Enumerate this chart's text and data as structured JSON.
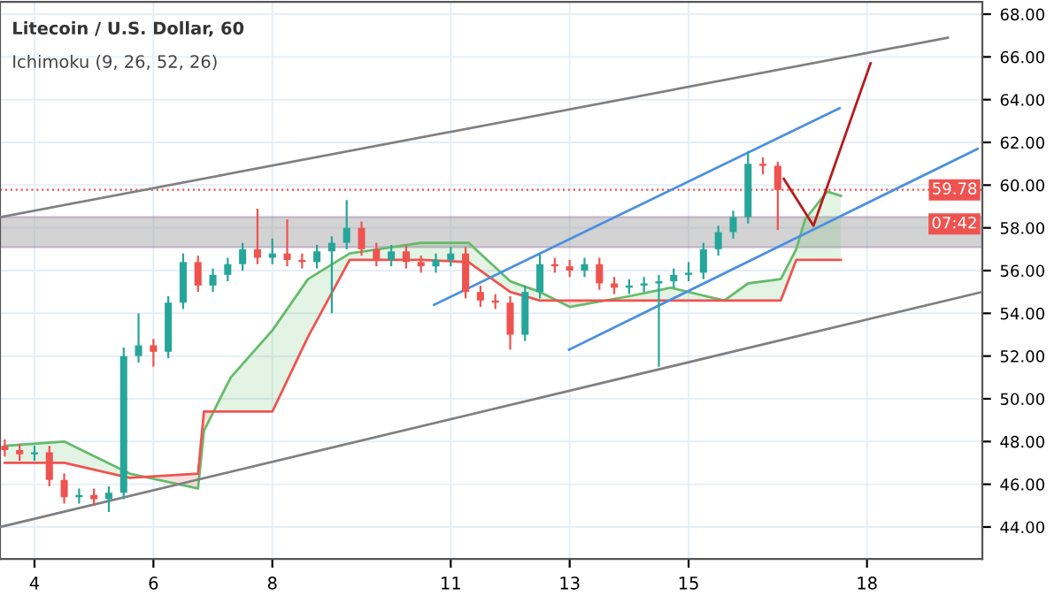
{
  "chart_data": {
    "type": "candlestick",
    "title": "Litecoin / U.S. Dollar, 60",
    "subtitle": "Ichimoku (9, 26, 52, 26)",
    "x": [
      3.5,
      3.75,
      4.0,
      4.25,
      4.5,
      4.75,
      5.0,
      5.25,
      5.5,
      5.75,
      6.0,
      6.25,
      6.5,
      6.75,
      7.0,
      7.25,
      7.5,
      7.75,
      8.0,
      8.25,
      8.5,
      8.75,
      9.0,
      9.25,
      9.5,
      9.75,
      10.0,
      10.25,
      10.5,
      10.75,
      11.0,
      11.25,
      11.5,
      11.75,
      12.0,
      12.25,
      12.5,
      12.75,
      13.0,
      13.25,
      13.5,
      13.75,
      14.0,
      14.25,
      14.5,
      14.75,
      15.0,
      15.25,
      15.5,
      15.75,
      16.0,
      16.25,
      16.5
    ],
    "ohlc": [
      [
        47.8,
        48.1,
        47.3,
        47.6
      ],
      [
        47.6,
        47.9,
        47.1,
        47.4
      ],
      [
        47.4,
        47.8,
        47.1,
        47.5
      ],
      [
        47.5,
        47.8,
        45.9,
        46.2
      ],
      [
        46.2,
        46.5,
        45.1,
        45.4
      ],
      [
        45.4,
        45.8,
        45.1,
        45.5
      ],
      [
        45.5,
        45.8,
        45.0,
        45.3
      ],
      [
        45.3,
        45.9,
        44.7,
        45.6
      ],
      [
        45.6,
        52.4,
        45.3,
        52.0
      ],
      [
        52.0,
        54.0,
        51.7,
        52.5
      ],
      [
        52.5,
        52.8,
        51.5,
        52.2
      ],
      [
        52.2,
        54.8,
        51.9,
        54.5
      ],
      [
        54.5,
        56.8,
        54.2,
        56.4
      ],
      [
        56.4,
        56.7,
        55.0,
        55.3
      ],
      [
        55.3,
        56.1,
        55.0,
        55.8
      ],
      [
        55.8,
        56.6,
        55.5,
        56.3
      ],
      [
        56.3,
        57.3,
        56.0,
        57.0
      ],
      [
        57.0,
        58.9,
        56.3,
        56.6
      ],
      [
        56.6,
        57.5,
        56.3,
        56.8
      ],
      [
        56.8,
        58.4,
        56.2,
        56.5
      ],
      [
        56.5,
        56.8,
        56.1,
        56.4
      ],
      [
        56.4,
        57.2,
        56.1,
        56.9
      ],
      [
        56.9,
        57.6,
        54.0,
        57.3
      ],
      [
        57.3,
        59.3,
        57.0,
        58.0
      ],
      [
        58.0,
        58.3,
        56.7,
        57.0
      ],
      [
        57.0,
        57.3,
        56.2,
        56.5
      ],
      [
        56.5,
        57.2,
        56.2,
        56.9
      ],
      [
        56.9,
        57.2,
        56.1,
        56.4
      ],
      [
        56.4,
        56.7,
        55.9,
        56.2
      ],
      [
        56.2,
        56.8,
        55.9,
        56.5
      ],
      [
        56.5,
        57.1,
        56.2,
        56.8
      ],
      [
        56.8,
        57.1,
        54.7,
        55.0
      ],
      [
        55.0,
        55.3,
        54.3,
        54.6
      ],
      [
        54.6,
        54.9,
        54.2,
        54.5
      ],
      [
        54.5,
        54.8,
        52.3,
        53.0
      ],
      [
        53.0,
        55.3,
        52.7,
        55.0
      ],
      [
        55.0,
        56.8,
        54.7,
        56.3
      ],
      [
        56.3,
        56.6,
        55.9,
        56.2
      ],
      [
        56.2,
        56.5,
        55.7,
        56.0
      ],
      [
        56.0,
        56.6,
        55.7,
        56.3
      ],
      [
        56.3,
        56.6,
        55.1,
        55.4
      ],
      [
        55.4,
        55.7,
        54.9,
        55.2
      ],
      [
        55.2,
        55.6,
        54.9,
        55.3
      ],
      [
        55.3,
        55.7,
        55.0,
        55.4
      ],
      [
        55.4,
        55.8,
        51.5,
        55.5
      ],
      [
        55.5,
        56.1,
        55.2,
        55.8
      ],
      [
        55.8,
        56.4,
        55.5,
        55.9
      ],
      [
        55.9,
        57.3,
        55.6,
        57.0
      ],
      [
        57.0,
        58.1,
        56.7,
        57.8
      ],
      [
        57.8,
        58.8,
        57.5,
        58.5
      ],
      [
        58.5,
        61.6,
        58.2,
        61.0
      ],
      [
        61.0,
        61.3,
        60.5,
        60.9
      ],
      [
        60.9,
        61.1,
        57.9,
        59.78
      ]
    ],
    "colors": [
      "#ef5350",
      "#ef5350",
      "#26a69a",
      "#ef5350",
      "#ef5350",
      "#26a69a",
      "#ef5350",
      "#26a69a",
      "#26a69a",
      "#26a69a",
      "#ef5350",
      "#26a69a",
      "#26a69a",
      "#ef5350",
      "#26a69a",
      "#26a69a",
      "#26a69a",
      "#ef5350",
      "#26a69a",
      "#ef5350",
      "#ef5350",
      "#26a69a",
      "#26a69a",
      "#26a69a",
      "#ef5350",
      "#ef5350",
      "#26a69a",
      "#ef5350",
      "#ef5350",
      "#26a69a",
      "#26a69a",
      "#ef5350",
      "#ef5350",
      "#ef5350",
      "#ef5350",
      "#26a69a",
      "#26a69a",
      "#ef5350",
      "#ef5350",
      "#26a69a",
      "#ef5350",
      "#ef5350",
      "#26a69a",
      "#26a69a",
      "#26a69a",
      "#26a69a",
      "#26a69a",
      "#26a69a",
      "#26a69a",
      "#26a69a",
      "#26a69a",
      "#ef5350",
      "#ef5350"
    ],
    "series": [
      {
        "type": "line",
        "color": "#66bb6a",
        "x": [
          3.5,
          4.5,
          5.6,
          6.75,
          6.85,
          7.3,
          8.0,
          8.6,
          9.3,
          10.5,
          11.3,
          12.0,
          12.5,
          13.0,
          14.0,
          14.7,
          15.6,
          16.0,
          16.55,
          16.81,
          16.96,
          17.33,
          17.56
        ],
        "values": [
          47.8,
          48.0,
          46.5,
          45.8,
          48.5,
          51.0,
          53.2,
          55.6,
          56.8,
          57.3,
          57.3,
          55.5,
          55.0,
          54.3,
          54.8,
          55.2,
          54.6,
          55.4,
          55.6,
          57.0,
          58.4,
          59.7,
          59.5
        ]
      },
      {
        "type": "line",
        "color": "#ef5350",
        "x": [
          3.5,
          4.5,
          5.6,
          6.75,
          6.85,
          7.3,
          8.0,
          8.6,
          9.3,
          10.5,
          11.3,
          12.0,
          12.5,
          13.0,
          14.0,
          14.7,
          15.6,
          16.0,
          16.55,
          16.81,
          16.96,
          17.33,
          17.56
        ],
        "values": [
          47.0,
          47.0,
          46.3,
          46.5,
          49.4,
          49.4,
          49.4,
          52.9,
          56.5,
          56.5,
          56.4,
          55.0,
          54.6,
          54.6,
          54.6,
          54.6,
          54.6,
          54.6,
          54.6,
          56.5,
          56.5,
          56.5,
          56.5
        ]
      },
      {
        "type": "line",
        "color": "#808080",
        "x": [
          3.42,
          19.36
        ],
        "values": [
          58.5,
          66.9
        ]
      },
      {
        "type": "line",
        "color": "#808080",
        "x": [
          3.42,
          19.94
        ],
        "values": [
          44.0,
          55.0
        ]
      },
      {
        "type": "line",
        "color": "#4a90e2",
        "x": [
          10.72,
          17.54
        ],
        "values": [
          54.4,
          63.6
        ]
      },
      {
        "type": "line",
        "color": "#4a90e2",
        "x": [
          12.99,
          19.86
        ],
        "values": [
          52.3,
          61.7
        ]
      },
      {
        "type": "line",
        "color": "#b71c1c",
        "x": [
          16.6,
          17.1,
          18.06
        ],
        "values": [
          60.3,
          58.1,
          65.7
        ]
      }
    ],
    "bands": [
      {
        "axis": "y",
        "from": 57.1,
        "to": 58.5,
        "color": "#9e9e9e"
      }
    ],
    "ref_lines": [
      {
        "axis": "y",
        "value": 59.78,
        "label": "59.78",
        "color": "#ef5350",
        "line_style": "dotted"
      }
    ],
    "annotations": [
      "07:42"
    ],
    "xlim": [
      3.42,
      19.94
    ],
    "xticks": [
      4,
      6,
      8,
      11,
      13,
      15,
      18
    ],
    "ylim": [
      42.5,
      68.58
    ],
    "yticks": [
      {
        "value": 44,
        "label": "44.00"
      },
      {
        "value": 46,
        "label": "46.00"
      },
      {
        "value": 48,
        "label": "48.00"
      },
      {
        "value": 50,
        "label": "50.00"
      },
      {
        "value": 52,
        "label": "52.00"
      },
      {
        "value": 54,
        "label": "54.00"
      },
      {
        "value": 56,
        "label": "56.00"
      },
      {
        "value": 58,
        "label": "58.00"
      },
      {
        "value": 60,
        "label": "60.00"
      },
      {
        "value": 62,
        "label": "62.00"
      },
      {
        "value": 64,
        "label": "64.00"
      },
      {
        "value": 66,
        "label": "66.00"
      },
      {
        "value": 68,
        "label": "68.00"
      }
    ],
    "grid": true,
    "legend": false
  }
}
